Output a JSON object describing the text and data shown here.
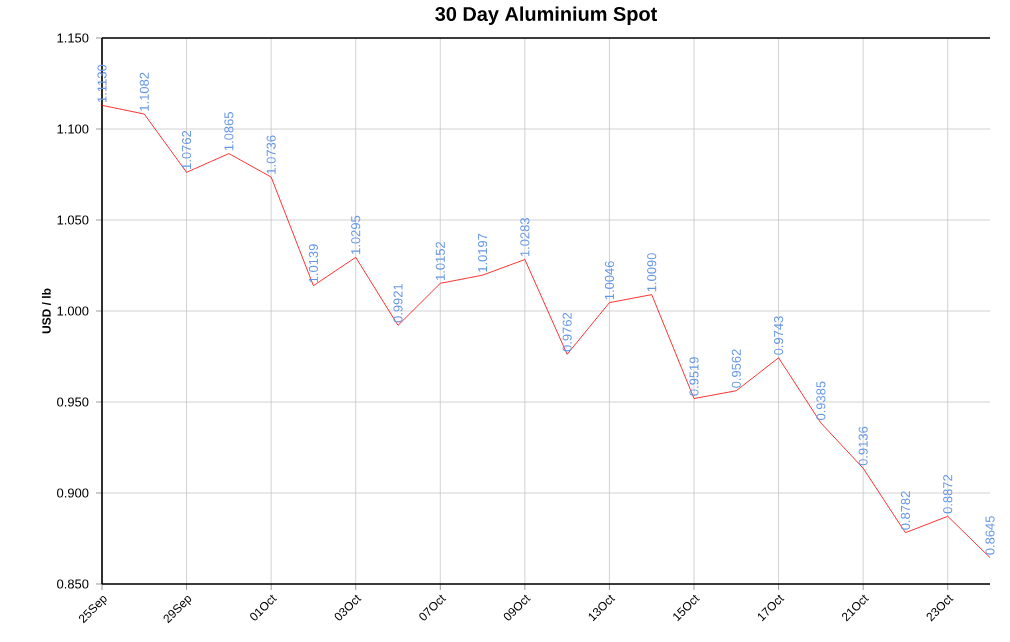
{
  "chart_data": {
    "type": "line",
    "title": "30 Day Aluminium Spot",
    "ylabel": "USD / lb",
    "categories": [
      "25Sep",
      null,
      "29Sep",
      null,
      "01Oct",
      null,
      "03Oct",
      null,
      "07Oct",
      null,
      "09Oct",
      null,
      "13Oct",
      null,
      "15Oct",
      null,
      "17Oct",
      null,
      "21Oct",
      null,
      "23Oct",
      null
    ],
    "series": [
      {
        "color": "#ff0000",
        "values": [
          1.113,
          1.1082,
          1.0762,
          1.0865,
          1.0736,
          1.0139,
          1.0295,
          0.9921,
          1.0152,
          1.0197,
          1.0283,
          0.9762,
          1.0046,
          1.009,
          0.9519,
          0.9562,
          0.9743,
          0.9385,
          0.9136,
          0.8782,
          0.8872,
          0.8645
        ],
        "value_labels": [
          "1.1130",
          "1.1082",
          "1.0762",
          "1.0865",
          "1.0736",
          "1.0139",
          "1.0295",
          "0.9921",
          "1.0152",
          "1.0197",
          "1.0283",
          "0.9762",
          "1.0046",
          "1.0090",
          "0.9519",
          "0.9562",
          "0.9743",
          "0.9385",
          "0.9136",
          "0.8782",
          "0.8872",
          "0.8645"
        ]
      }
    ],
    "ylim": [
      0.85,
      1.15
    ],
    "yticks": [
      {
        "value": 0.85,
        "label": "0.850"
      },
      {
        "value": 0.9,
        "label": "0.900"
      },
      {
        "value": 0.95,
        "label": "0.950"
      },
      {
        "value": 1.0,
        "label": "1.000"
      },
      {
        "value": 1.05,
        "label": "1.050"
      },
      {
        "value": 1.1,
        "label": "1.100"
      },
      {
        "value": 1.15,
        "label": "1.150"
      }
    ],
    "grid": true,
    "marker": "none",
    "line_style": "solid"
  }
}
